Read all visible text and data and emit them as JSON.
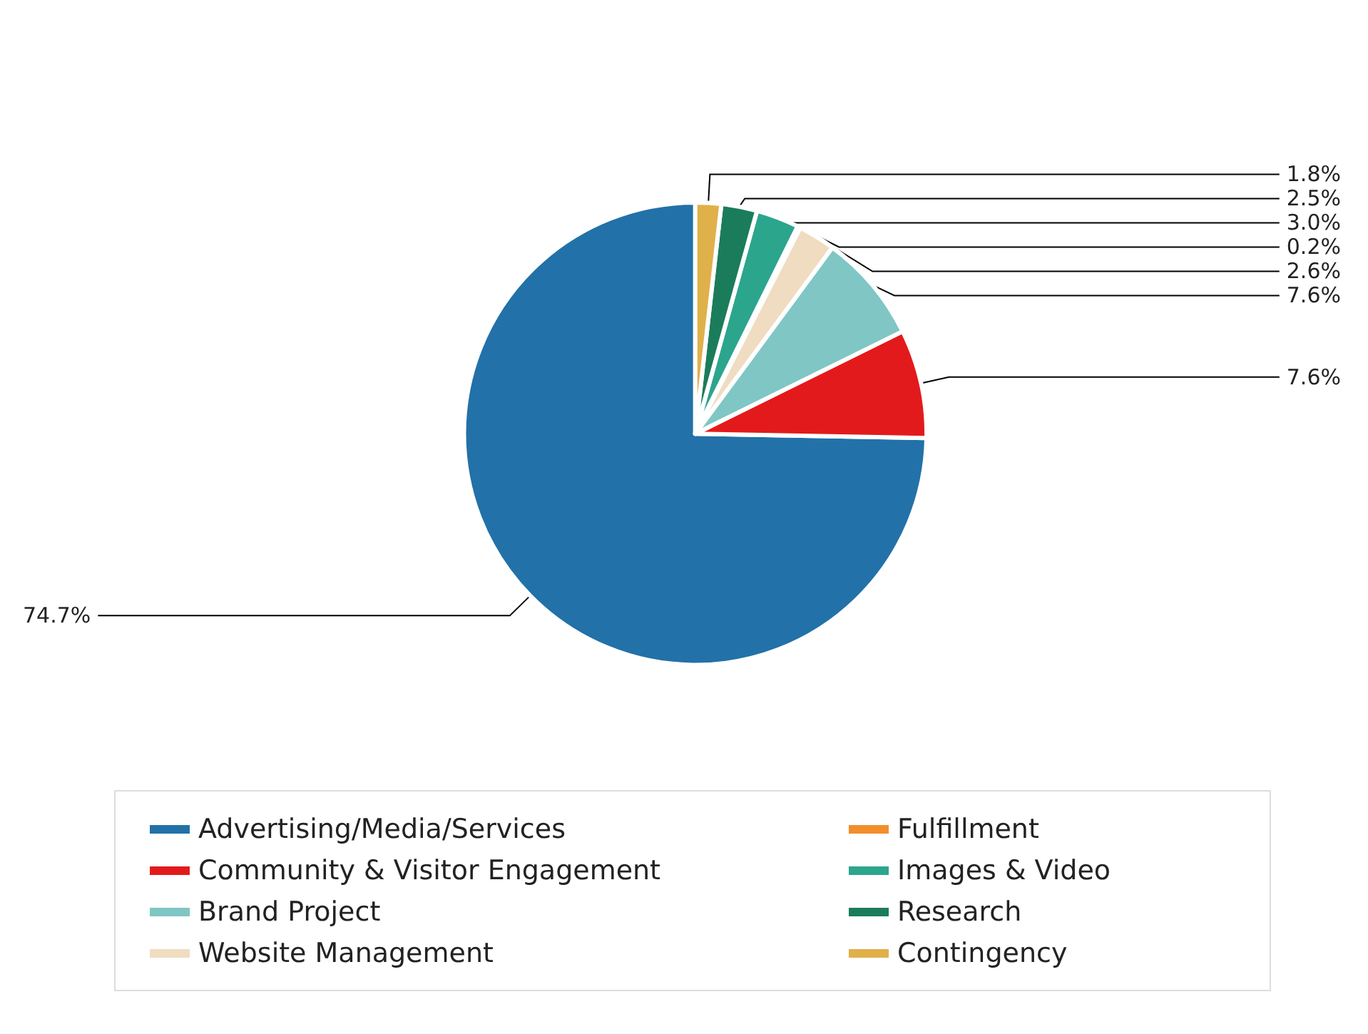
{
  "chart_data": {
    "type": "pie",
    "categories": [
      "Advertising/Media/Services",
      "Community & Visitor Engagement",
      "Brand Project",
      "Website Management",
      "Fulfillment",
      "Images & Video",
      "Research",
      "Contingency"
    ],
    "values": [
      74.7,
      7.6,
      7.6,
      2.6,
      0.2,
      3.0,
      2.5,
      1.8
    ],
    "colors": [
      "#2271a8",
      "#e31a1c",
      "#7fc6c4",
      "#f0dcc0",
      "#f28e2b",
      "#2ca58d",
      "#1b7c5c",
      "#e0b04a"
    ],
    "value_labels": [
      "74.7%",
      "7.6%",
      "7.6%",
      "2.6%",
      "0.2%",
      "3.0%",
      "2.5%",
      "1.8%"
    ],
    "legend": "bottom"
  }
}
